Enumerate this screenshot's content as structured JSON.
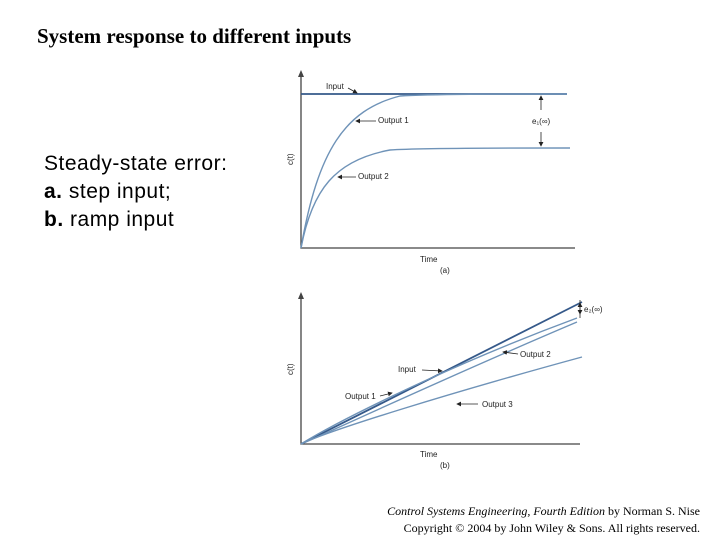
{
  "title": "System response to different inputs",
  "body": {
    "heading": "Steady-state error:",
    "items": [
      {
        "marker": "a.",
        "text": "step input;"
      },
      {
        "marker": "b.",
        "text": "ramp input"
      }
    ]
  },
  "figure": {
    "panels": [
      {
        "y_label": "c(t)",
        "x_label": "Time",
        "tag": "(a)",
        "input": "Input",
        "output_1": "Output 1",
        "output_2": "Output 2",
        "error": "e₁(∞)"
      },
      {
        "y_label": "c(t)",
        "x_label": "Time",
        "tag": "(b)",
        "input": "Input",
        "output_1": "Output 1",
        "output_2": "Output 2",
        "output_3": "Output 3",
        "error": "e₂(∞)"
      }
    ]
  },
  "credit": {
    "book": "Control Systems Engineering, Fourth Edition",
    "author": "by Norman S. Nise",
    "copyright": "Copyright © 2004 by John Wiley & Sons. All rights reserved."
  }
}
